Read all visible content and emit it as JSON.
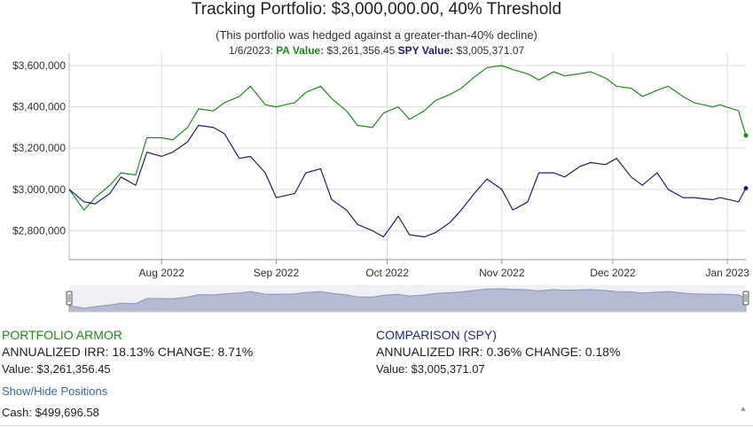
{
  "chart_data": {
    "type": "line",
    "title": "Tracking Portfolio: $3,000,000.00, 40% Threshold",
    "subtitle": "(This portfolio was hedged against a greater-than-40% decline)",
    "readout": {
      "date": "1/6/2023:",
      "pa_label": "PA Value:",
      "pa_value": "$3,261,356.45",
      "spy_label": "SPY Value:",
      "spy_value": "$3,005,371.07"
    },
    "x_tick_labels": [
      "Aug 2022",
      "Sep 2022",
      "Oct 2022",
      "Nov 2022",
      "Dec 2022",
      "Jan 2023"
    ],
    "x_tick_dates": [
      "2022-08-01",
      "2022-09-01",
      "2022-10-01",
      "2022-11-01",
      "2022-12-01",
      "2023-01-01"
    ],
    "x_range": [
      "2022-07-07",
      "2023-01-06"
    ],
    "y_ticks": [
      2800000,
      3000000,
      3200000,
      3400000,
      3600000
    ],
    "y_tick_labels": [
      "$2,800,000",
      "$3,000,000",
      "$3,200,000",
      "$3,400,000",
      "$3,600,000"
    ],
    "ylim": [
      2660000,
      3660000
    ],
    "grid": true,
    "series": [
      {
        "name": "PA Value:",
        "color": "#1f8a1f",
        "x": [
          "2022-07-07",
          "2022-07-11",
          "2022-07-14",
          "2022-07-18",
          "2022-07-21",
          "2022-07-25",
          "2022-07-28",
          "2022-08-01",
          "2022-08-04",
          "2022-08-08",
          "2022-08-11",
          "2022-08-15",
          "2022-08-18",
          "2022-08-22",
          "2022-08-25",
          "2022-08-29",
          "2022-09-01",
          "2022-09-06",
          "2022-09-09",
          "2022-09-13",
          "2022-09-16",
          "2022-09-20",
          "2022-09-23",
          "2022-09-27",
          "2022-09-30",
          "2022-10-04",
          "2022-10-07",
          "2022-10-11",
          "2022-10-14",
          "2022-10-18",
          "2022-10-21",
          "2022-10-25",
          "2022-10-28",
          "2022-11-01",
          "2022-11-04",
          "2022-11-08",
          "2022-11-11",
          "2022-11-15",
          "2022-11-18",
          "2022-11-22",
          "2022-11-25",
          "2022-11-29",
          "2022-12-02",
          "2022-12-06",
          "2022-12-09",
          "2022-12-13",
          "2022-12-16",
          "2022-12-20",
          "2022-12-23",
          "2022-12-28",
          "2022-12-30",
          "2023-01-04",
          "2023-01-06"
        ],
        "values": [
          3000000,
          2900000,
          2960000,
          3020000,
          3080000,
          3070000,
          3250000,
          3250000,
          3240000,
          3300000,
          3390000,
          3380000,
          3420000,
          3450000,
          3500000,
          3410000,
          3400000,
          3420000,
          3470000,
          3500000,
          3440000,
          3380000,
          3310000,
          3300000,
          3370000,
          3400000,
          3340000,
          3380000,
          3430000,
          3460000,
          3490000,
          3550000,
          3590000,
          3600000,
          3580000,
          3560000,
          3530000,
          3570000,
          3550000,
          3560000,
          3570000,
          3540000,
          3500000,
          3490000,
          3450000,
          3480000,
          3500000,
          3450000,
          3420000,
          3400000,
          3410000,
          3380000,
          3261356
        ]
      },
      {
        "name": "SPY Value:",
        "color": "#1c1f7a",
        "x": [
          "2022-07-07",
          "2022-07-11",
          "2022-07-14",
          "2022-07-18",
          "2022-07-21",
          "2022-07-25",
          "2022-07-28",
          "2022-08-01",
          "2022-08-04",
          "2022-08-08",
          "2022-08-11",
          "2022-08-15",
          "2022-08-18",
          "2022-08-22",
          "2022-08-25",
          "2022-08-29",
          "2022-09-01",
          "2022-09-06",
          "2022-09-09",
          "2022-09-13",
          "2022-09-16",
          "2022-09-20",
          "2022-09-23",
          "2022-09-27",
          "2022-09-30",
          "2022-10-04",
          "2022-10-07",
          "2022-10-11",
          "2022-10-14",
          "2022-10-18",
          "2022-10-21",
          "2022-10-25",
          "2022-10-28",
          "2022-11-01",
          "2022-11-04",
          "2022-11-08",
          "2022-11-11",
          "2022-11-15",
          "2022-11-18",
          "2022-11-22",
          "2022-11-25",
          "2022-11-29",
          "2022-12-02",
          "2022-12-06",
          "2022-12-09",
          "2022-12-13",
          "2022-12-16",
          "2022-12-20",
          "2022-12-23",
          "2022-12-28",
          "2022-12-30",
          "2023-01-04",
          "2023-01-06"
        ],
        "values": [
          3000000,
          2940000,
          2930000,
          2980000,
          3060000,
          3020000,
          3180000,
          3160000,
          3180000,
          3230000,
          3310000,
          3300000,
          3270000,
          3150000,
          3160000,
          3080000,
          2960000,
          2980000,
          3080000,
          3100000,
          2950000,
          2900000,
          2830000,
          2800000,
          2770000,
          2870000,
          2780000,
          2770000,
          2790000,
          2840000,
          2900000,
          2990000,
          3050000,
          3000000,
          2900000,
          2940000,
          3080000,
          3080000,
          3060000,
          3110000,
          3130000,
          3120000,
          3150000,
          3060000,
          3020000,
          3080000,
          3000000,
          2960000,
          2960000,
          2950000,
          2960000,
          2940000,
          3005371
        ]
      }
    ]
  },
  "stats": {
    "pa": {
      "title": "PORTFOLIO ARMOR",
      "line": "ANNUALIZED IRR: 18.13% CHANGE: 8.71%",
      "value_label": "Value:",
      "value": "$3,261,356.45"
    },
    "spy": {
      "title": "COMPARISON (SPY)",
      "line": "ANNUALIZED IRR: 0.36% CHANGE: 0.18%",
      "value_label": "Value:",
      "value": "$3,005,371.07"
    }
  },
  "links": {
    "toggle_positions": "Show/Hide Positions"
  },
  "cash": {
    "label": "Cash:",
    "value": "$499,696.58"
  },
  "icons": {
    "scroll_up": "triangle-up-icon"
  }
}
